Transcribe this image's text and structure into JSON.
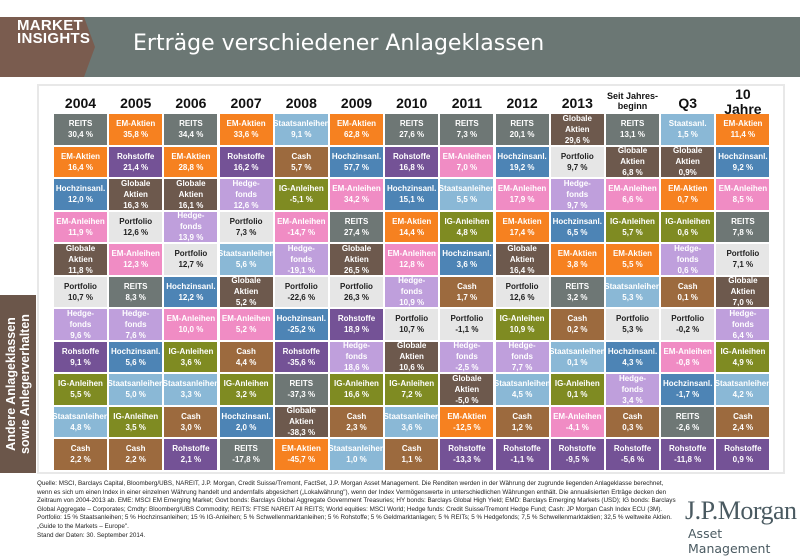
{
  "header": {
    "brand_line1": "MARKET",
    "brand_line2": "INSIGHTS",
    "title": "Erträge verschiedener Anlageklassen"
  },
  "side_label": {
    "line1": "Andere Anlageklassen",
    "line2": "sowie Anlegerverhalten"
  },
  "colors": {
    "REITS": "#6e7775",
    "EM-Aktien": "#f68120",
    "Staatsanleihen": "#8ab8d6",
    "Staatsanl.": "#8ab8d6",
    "Cash": "#9c6a3e",
    "Rohstoffe": "#745296",
    "Hochzinsanl.": "#4d84b5",
    "Globale Aktien": "#6d594d",
    "Hedge-fonds": "#bf9fdc",
    "IG-Anleihen": "#7f8b22",
    "EM-Anleihen": "#f08cc4",
    "Portfolio": "#e6e6e6"
  },
  "chart_data": {
    "type": "table",
    "title": "Erträge verschiedener Anlageklassen",
    "columns": [
      {
        "label": "2004"
      },
      {
        "label": "2005"
      },
      {
        "label": "2006"
      },
      {
        "label": "2007"
      },
      {
        "label": "2008"
      },
      {
        "label": "2009"
      },
      {
        "label": "2010"
      },
      {
        "label": "2011"
      },
      {
        "label": "2012"
      },
      {
        "label": "2013"
      },
      {
        "label": "Seit Jahres-\nbeginn"
      },
      {
        "label": "Q3 2014"
      },
      {
        "label": "10 Jahre\n(ann.)"
      }
    ],
    "cells": [
      [
        {
          "asset": "REITS",
          "value": "30,4 %"
        },
        {
          "asset": "EM-Aktien",
          "value": "16,4 %"
        },
        {
          "asset": "Hochzinsanl.",
          "value": "12,0 %"
        },
        {
          "asset": "EM-Anleihen",
          "value": "11,9 %"
        },
        {
          "asset": "Globale Aktien",
          "value": "11,8 %"
        },
        {
          "asset": "Portfolio",
          "value": "10,7 %"
        },
        {
          "asset": "Hedge-fonds",
          "value": "9,6 %"
        },
        {
          "asset": "Rohstoffe",
          "value": "9,1 %"
        },
        {
          "asset": "IG-Anleihen",
          "value": "5,5 %"
        },
        {
          "asset": "Staatsanleihen",
          "value": "4,8 %"
        },
        {
          "asset": "Cash",
          "value": "2,2  %"
        }
      ],
      [
        {
          "asset": "EM-Aktien",
          "value": "35,8 %"
        },
        {
          "asset": "Rohstoffe",
          "value": "21,4 %"
        },
        {
          "asset": "Globale Aktien",
          "value": "16,3 %"
        },
        {
          "asset": "Portfolio",
          "value": "12,6 %"
        },
        {
          "asset": "EM-Anleihen",
          "value": "12,3 %"
        },
        {
          "asset": "REITS",
          "value": "8,3 %"
        },
        {
          "asset": "Hedge-fonds",
          "value": "7,6 %"
        },
        {
          "asset": "Hochzinsanl.",
          "value": "5,6 %"
        },
        {
          "asset": "Staatsanleihen",
          "value": "5,0 %"
        },
        {
          "asset": "IG-Anleihen",
          "value": "3,5 %"
        },
        {
          "asset": "Cash",
          "value": "2,2 %"
        }
      ],
      [
        {
          "asset": "REITS",
          "value": "34,4 %"
        },
        {
          "asset": "EM-Aktien",
          "value": "28,8 %"
        },
        {
          "asset": "Globale Aktien",
          "value": "16,1 %"
        },
        {
          "asset": "Hedge-fonds",
          "value": "13,9 %"
        },
        {
          "asset": "Portfolio",
          "value": "12,7 %"
        },
        {
          "asset": "Hochzinsanl.",
          "value": "12,2 %"
        },
        {
          "asset": "EM-Anleihen",
          "value": "10,0 %"
        },
        {
          "asset": "IG-Anleihen",
          "value": "3,6 %"
        },
        {
          "asset": "Staatsanleihen",
          "value": "3,3 %"
        },
        {
          "asset": "Cash",
          "value": "3,0 %"
        },
        {
          "asset": "Rohstoffe",
          "value": "2,1 %"
        }
      ],
      [
        {
          "asset": "EM-Aktien",
          "value": "33,6 %"
        },
        {
          "asset": "Rohstoffe",
          "value": "16,2 %"
        },
        {
          "asset": "Hedge-fonds",
          "value": "12,6 %"
        },
        {
          "asset": "Portfolio",
          "value": "7,3 %"
        },
        {
          "asset": "Staatsanleihen",
          "value": "5,6 %"
        },
        {
          "asset": "Globale Aktien",
          "value": "5,2 %"
        },
        {
          "asset": "EM-Anleihen",
          "value": "5,2 %"
        },
        {
          "asset": "Cash",
          "value": "4,4 %"
        },
        {
          "asset": "IG-Anleihen",
          "value": "3,2 %"
        },
        {
          "asset": "Hochzinsanl.",
          "value": "2,0 %"
        },
        {
          "asset": "REITS",
          "value": "-17,8 %"
        }
      ],
      [
        {
          "asset": "Staatsanleihen",
          "value": "9,1 %"
        },
        {
          "asset": "Cash",
          "value": "5,7 %"
        },
        {
          "asset": "IG-Anleihen",
          "value": "-5,1 %"
        },
        {
          "asset": "EM-Anleihen",
          "value": "-14,7 %"
        },
        {
          "asset": "Hedge-fonds",
          "value": "-19,1 %"
        },
        {
          "asset": "Portfolio",
          "value": "-22,6 %"
        },
        {
          "asset": "Hochzinsanl.",
          "value": "-25,2 %"
        },
        {
          "asset": "Rohstoffe",
          "value": "-35,6 %"
        },
        {
          "asset": "REITS",
          "value": "-37,3 %"
        },
        {
          "asset": "Globale Aktien",
          "value": "-38,3 %"
        },
        {
          "asset": "EM-Aktien",
          "value": "-45,7 %"
        }
      ],
      [
        {
          "asset": "EM-Aktien",
          "value": "62,8 %"
        },
        {
          "asset": "Hochzinsanl.",
          "value": "57,7 %"
        },
        {
          "asset": "EM-Anleihen",
          "value": "34,2 %"
        },
        {
          "asset": "REITS",
          "value": "27,4 %"
        },
        {
          "asset": "Globale Aktien",
          "value": "26,5 %"
        },
        {
          "asset": "Portfolio",
          "value": "26,3 %"
        },
        {
          "asset": "Rohstoffe",
          "value": "18,9 %"
        },
        {
          "asset": "Hedge-fonds",
          "value": "18,6 %"
        },
        {
          "asset": "IG-Anleihen",
          "value": "16,6 %"
        },
        {
          "asset": "Cash",
          "value": "2,3 %"
        },
        {
          "asset": "Staatsanleihen",
          "value": "1,0 %"
        }
      ],
      [
        {
          "asset": "REITS",
          "value": "27,6 %"
        },
        {
          "asset": "Rohstoffe",
          "value": "16,8 %"
        },
        {
          "asset": "Hochzinsanl.",
          "value": "15,1 %"
        },
        {
          "asset": "EM-Aktien",
          "value": "14,4 %"
        },
        {
          "asset": "EM-Anleihen",
          "value": "12,8 %"
        },
        {
          "asset": "Hedge-fonds",
          "value": "10,9 %"
        },
        {
          "asset": "Portfolio",
          "value": "10,7 %"
        },
        {
          "asset": "Globale Aktien",
          "value": "10,6 %"
        },
        {
          "asset": "IG-Anleihen",
          "value": "7,2 %"
        },
        {
          "asset": "Staatsanleihen",
          "value": "3,6 %"
        },
        {
          "asset": "Cash",
          "value": "1,1 %"
        }
      ],
      [
        {
          "asset": "REITS",
          "value": "7,3 %"
        },
        {
          "asset": "EM-Anleihen",
          "value": "7,0 %"
        },
        {
          "asset": "Staatsanleihen",
          "value": "5,5 %"
        },
        {
          "asset": "IG-Anleihen",
          "value": "4,8 %"
        },
        {
          "asset": "Hochzinsanl.",
          "value": "3,6 %"
        },
        {
          "asset": "Cash",
          "value": "1,7 %"
        },
        {
          "asset": "Portfolio",
          "value": "-1,1 %"
        },
        {
          "asset": "Hedge-fonds",
          "value": "-2,5 %"
        },
        {
          "asset": "Globale Aktien",
          "value": "-5,0 %"
        },
        {
          "asset": "EM-Aktien",
          "value": "-12,5 %"
        },
        {
          "asset": "Rohstoffe",
          "value": "-13,3 %"
        }
      ],
      [
        {
          "asset": "REITS",
          "value": "20,1 %"
        },
        {
          "asset": "Hochzinsanl.",
          "value": "19,2 %"
        },
        {
          "asset": "EM-Anleihen",
          "value": "17,9 %"
        },
        {
          "asset": "EM-Aktien",
          "value": "17,4 %"
        },
        {
          "asset": "Globale Aktien",
          "value": "16,4 %"
        },
        {
          "asset": "Portfolio",
          "value": "12,6 %"
        },
        {
          "asset": "IG-Anleihen",
          "value": "10,9 %"
        },
        {
          "asset": "Hedge-fonds",
          "value": "7,7 %"
        },
        {
          "asset": "Staatsanleihen",
          "value": "4,5 %"
        },
        {
          "asset": "Cash",
          "value": "1,2 %"
        },
        {
          "asset": "Rohstoffe",
          "value": "-1,1 %"
        }
      ],
      [
        {
          "asset": "Globale Aktien",
          "value": "29,6 %"
        },
        {
          "asset": "Portfolio",
          "value": "9,7 %"
        },
        {
          "asset": "Hedge-fonds",
          "value": "9,7 %"
        },
        {
          "asset": "Hochzinsanl.",
          "value": "6,5 %"
        },
        {
          "asset": "EM-Aktien",
          "value": "3,8 %"
        },
        {
          "asset": "REITS",
          "value": "3,2 %"
        },
        {
          "asset": "Cash",
          "value": "0,2 %"
        },
        {
          "asset": "Staatsanleihen",
          "value": "0,1 %"
        },
        {
          "asset": "IG-Anleihen",
          "value": "0,1 %"
        },
        {
          "asset": "EM-Anleihen",
          "value": "-4,1 %"
        },
        {
          "asset": "Rohstoffe",
          "value": "-9,5 %"
        }
      ],
      [
        {
          "asset": "REITS",
          "value": "13,1 %"
        },
        {
          "asset": "Globale Aktien",
          "value": "6,8 %"
        },
        {
          "asset": "EM-Anleihen",
          "value": "6,6 %"
        },
        {
          "asset": "IG-Anleihen",
          "value": "5,7 %"
        },
        {
          "asset": "EM-Aktien",
          "value": "5,5 %"
        },
        {
          "asset": "Staatsanleihen",
          "value": "5,3 %"
        },
        {
          "asset": "Portfolio",
          "value": "5,3 %"
        },
        {
          "asset": "Hochzinsanl.",
          "value": "4,3 %"
        },
        {
          "asset": "Hedge-fonds",
          "value": "3,4 %"
        },
        {
          "asset": "Cash",
          "value": "0,3 %"
        },
        {
          "asset": "Rohstoffe",
          "value": "-5,6  %"
        }
      ],
      [
        {
          "asset": "Staatsanl.",
          "value": "1,5 %"
        },
        {
          "asset": "Globale Aktien",
          "value": "0,9%"
        },
        {
          "asset": "EM-Aktien",
          "value": "0,7 %"
        },
        {
          "asset": "IG-Anleihen",
          "value": "0,6 %"
        },
        {
          "asset": "Hedge-fonds",
          "value": "0,6 %"
        },
        {
          "asset": "Cash",
          "value": "0,1 %"
        },
        {
          "asset": "Portfolio",
          "value": "-0,2 %"
        },
        {
          "asset": "EM-Anleihen",
          "value": "-0,8 %"
        },
        {
          "asset": "Hochzinsanl.",
          "value": "-1,7 %"
        },
        {
          "asset": "REITS",
          "value": "-2,6 %"
        },
        {
          "asset": "Rohstoffe",
          "value": "-11,8  %"
        }
      ],
      [
        {
          "asset": "EM-Aktien",
          "value": "11,4 %"
        },
        {
          "asset": "Hochzinsanl.",
          "value": "9,2 %"
        },
        {
          "asset": "EM-Anleihen",
          "value": "8,5 %"
        },
        {
          "asset": "REITS",
          "value": "7,8 %"
        },
        {
          "asset": "Portfolio",
          "value": "7,1 %"
        },
        {
          "asset": "Globale Aktien",
          "value": "7,0 %"
        },
        {
          "asset": "Hedge-fonds",
          "value": "6,4 %"
        },
        {
          "asset": "IG-Anleihen",
          "value": "4,9 %"
        },
        {
          "asset": "Staatsanleihen",
          "value": "4,2 %"
        },
        {
          "asset": "Cash",
          "value": "2,4 %"
        },
        {
          "asset": "Rohstoffe",
          "value": "0,9 %"
        }
      ]
    ]
  },
  "footer": {
    "source": "Quelle: MSCI, Barclays Capital, Bloomberg/UBS, NAREIT, J.P. Morgan, Credit Suisse/Tremont, FactSet, J.P. Morgan Asset Management. Die Renditen werden in der Währung der zugrunde liegenden Anlageklasse berechnet, wenn es sich um einen Index in einer einzelnen Währung handelt und andernfalls abgesichert („Lokalwährung\"), wenn der Index Vermögenswerte in unterschiedlichen Währungen enthält. Die annualisierten Erträge decken den Zeitraum von 2004-2013 ab. EME: MSCI EM Emerging Market; Govt bonds: Barclays Global Aggregate Government Treasuries; HY bonds: Barclays Global High Yield; EMD: Barclays Emerging Markets (USD); IG bonds: Barclays Global Aggregate – Corporates; Cmdty: Bloomberg/UBS Commodity; REITS: FTSE NAREIT All REITS; World equities: MSCI World; Hedge funds: Credit Suisse/Tremont Hedge Fund; Cash: JP Morgan Cash Index ECU (3M). Portfolio: 15 % Staatsanleihen; 5 % Hochzinsanleihen; 15 % IG-Anleihen; 5 % Schwellenmarktanleihen; 5 % Rohstoffe; 5 % Geldmarktanlagen; 5 % REITs; 5 % Hedgefonds; 7,5 % Schwellenmarktaktien; 32,5 % weltweite Aktien. „Guide to the Markets – Europe\".",
    "date": "Stand der Daten: 30. September 2014."
  },
  "logo": {
    "name": "J.P.Morgan",
    "sub": "Asset Management"
  }
}
